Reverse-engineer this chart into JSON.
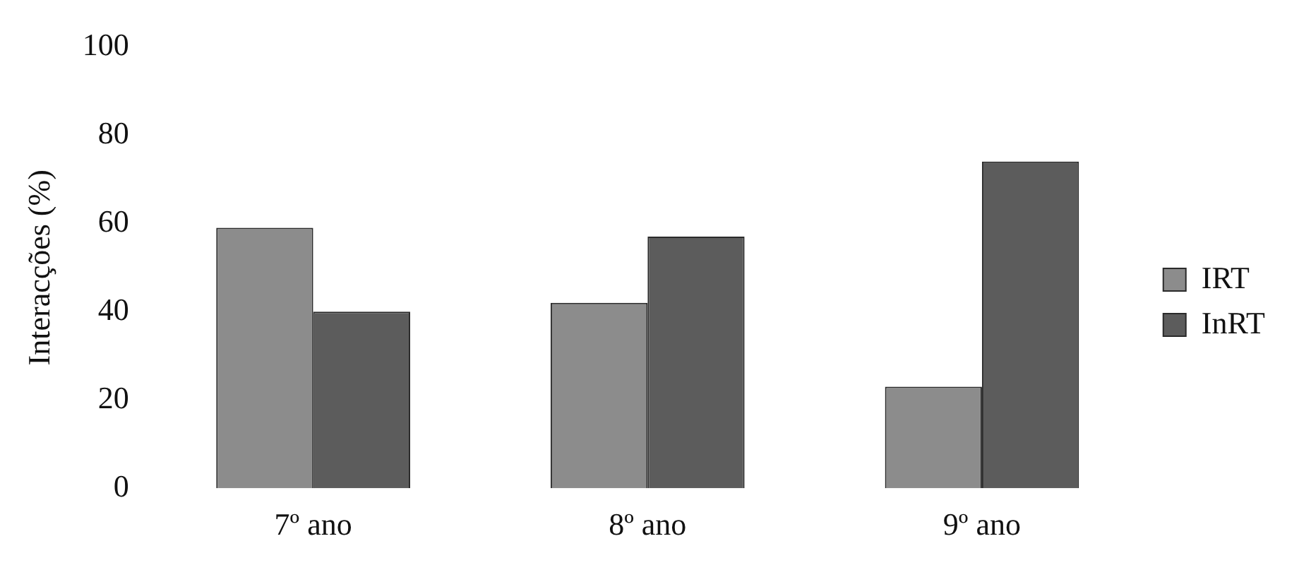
{
  "chart_data": {
    "type": "bar",
    "ylabel": "Interacções (%)",
    "categories": [
      "7º ano",
      "8º ano",
      "9º ano"
    ],
    "series": [
      {
        "name": "IRT",
        "color": "#8c8c8c",
        "values": [
          59,
          42,
          23
        ]
      },
      {
        "name": "InRT",
        "color": "#5c5c5c",
        "values": [
          40,
          57,
          74
        ]
      }
    ],
    "ylim": [
      0,
      100
    ],
    "yticks": [
      0,
      20,
      40,
      60,
      80,
      100
    ],
    "grid": false,
    "legend": "right"
  }
}
